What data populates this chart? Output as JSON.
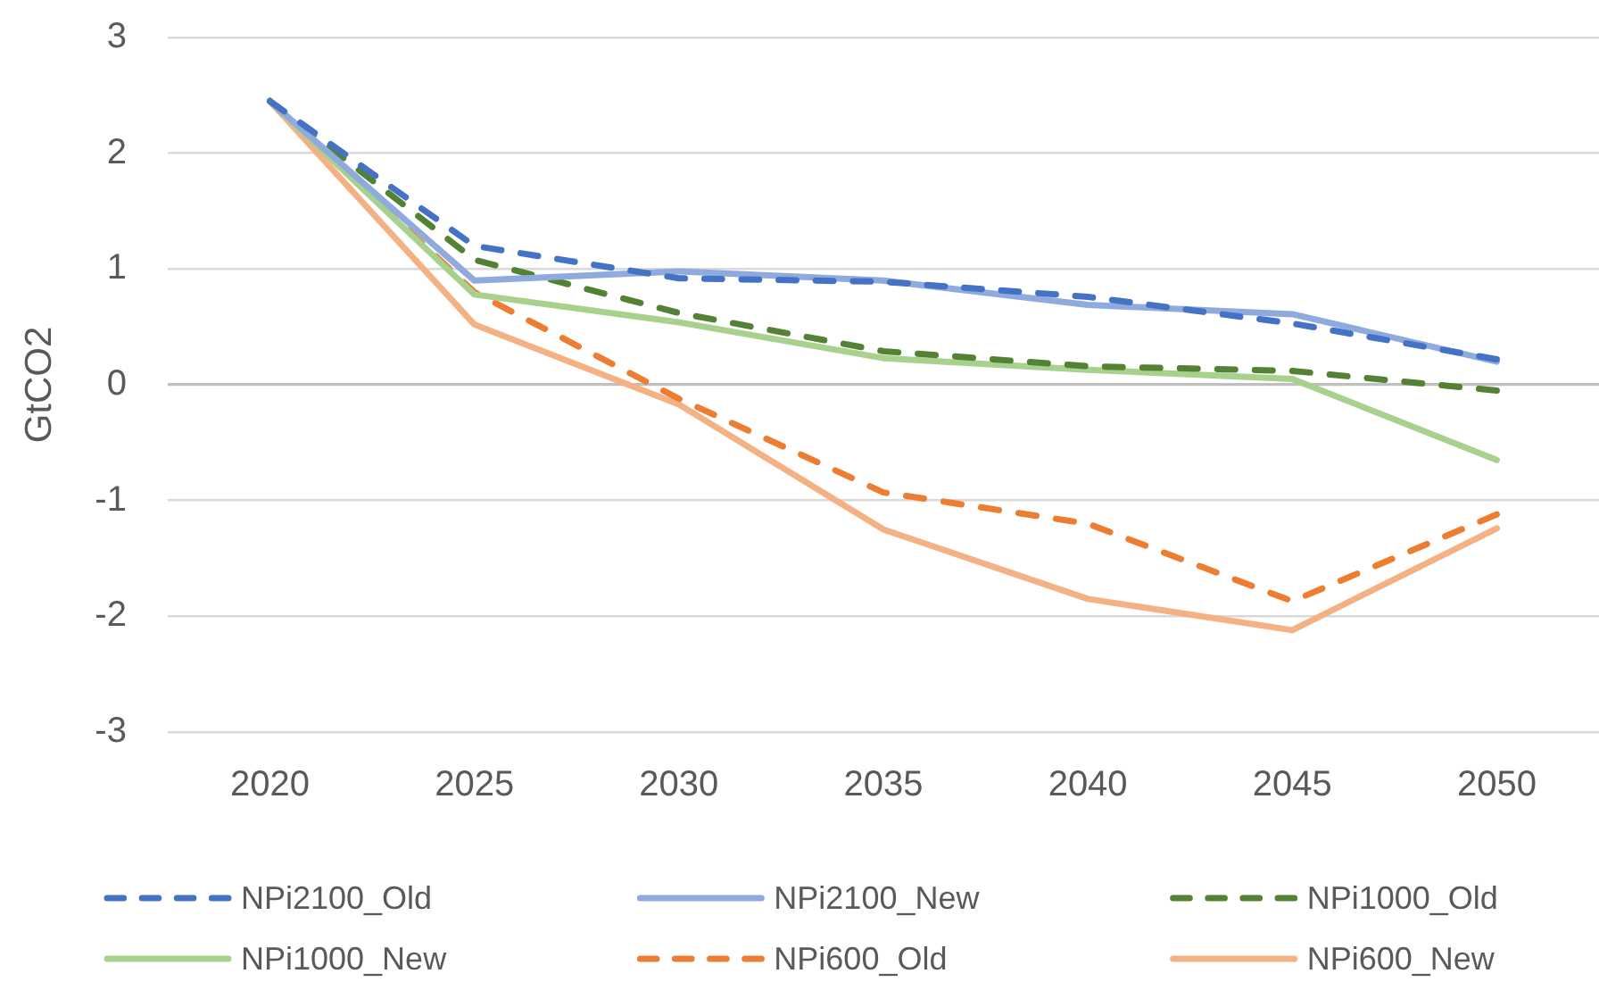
{
  "chart_data": {
    "type": "line",
    "ylabel": "GtCO2",
    "categories": [
      "2020",
      "2025",
      "2030",
      "2035",
      "2040",
      "2045",
      "2050"
    ],
    "series": [
      {
        "name": "NPi2100_Old",
        "color": "#4472c4",
        "line_style": "dashed",
        "values": [
          2.45,
          1.2,
          0.92,
          0.89,
          0.76,
          0.53,
          0.22
        ]
      },
      {
        "name": "NPi2100_New",
        "color": "#8faadc",
        "line_style": "solid",
        "values": [
          2.45,
          0.9,
          0.98,
          0.9,
          0.69,
          0.61,
          0.2
        ]
      },
      {
        "name": "NPi1000_Old",
        "color": "#548235",
        "line_style": "dashed",
        "values": [
          2.45,
          1.08,
          0.62,
          0.29,
          0.16,
          0.12,
          -0.05
        ]
      },
      {
        "name": "NPi1000_New",
        "color": "#a9d18e",
        "line_style": "solid",
        "values": [
          2.45,
          0.78,
          0.54,
          0.23,
          0.13,
          0.05,
          -0.65
        ]
      },
      {
        "name": "NPi600_Old",
        "color": "#ed7d31",
        "line_style": "dashed",
        "values": [
          2.45,
          0.8,
          -0.12,
          -0.93,
          -1.2,
          -1.87,
          -1.12
        ]
      },
      {
        "name": "NPi600_New",
        "color": "#f4b183",
        "line_style": "solid",
        "values": [
          2.45,
          0.52,
          -0.17,
          -1.25,
          -1.85,
          -2.12,
          -1.24
        ]
      }
    ],
    "ylim": [
      -3,
      3
    ],
    "yticks": [
      -3,
      -2,
      -1,
      0,
      1,
      2,
      3
    ],
    "grid": "y",
    "legend": "bottom",
    "marker": "none"
  }
}
